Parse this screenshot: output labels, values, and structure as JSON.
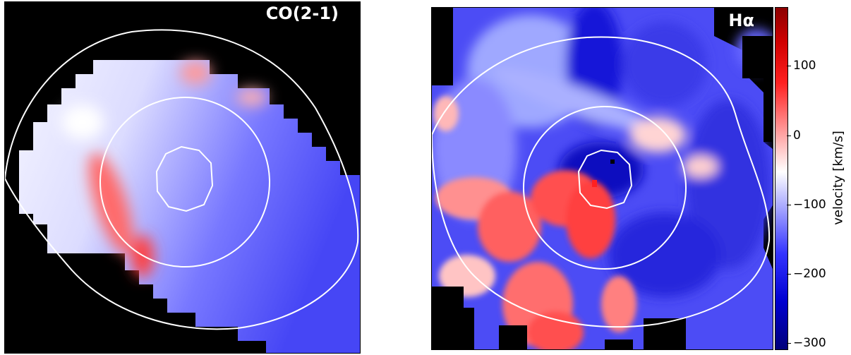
{
  "chart_data": [
    {
      "type": "heatmap",
      "title": "CO(2-1)",
      "colormap": "seismic-like (blue → white → red)",
      "contours": "white elliptical isophote contours (3 levels)",
      "masked_color": "#000000"
    },
    {
      "type": "heatmap",
      "title": "Hα",
      "colormap": "seismic-like (blue → white → red)",
      "contours": "white elliptical isophote contours (3 levels)",
      "masked_color": "#000000",
      "colorbar": {
        "label": "velocity [km/s]",
        "range": [
          -310,
          185
        ],
        "ticks": [
          100,
          0,
          -100,
          -200,
          -300
        ],
        "tick_labels": [
          "100",
          "0",
          "−100",
          "−200",
          "−300"
        ]
      }
    }
  ],
  "panels": {
    "co_label": "CO(2-1)",
    "ha_label": "Hα"
  },
  "colorbar": {
    "title": "velocity [km/s]",
    "ticks": [
      {
        "value": 100,
        "label": "100"
      },
      {
        "value": 0,
        "label": "0"
      },
      {
        "value": -100,
        "label": "−100"
      },
      {
        "value": -200,
        "label": "−200"
      },
      {
        "value": -300,
        "label": "−300"
      }
    ],
    "vmin": -310,
    "vmax": 185
  }
}
